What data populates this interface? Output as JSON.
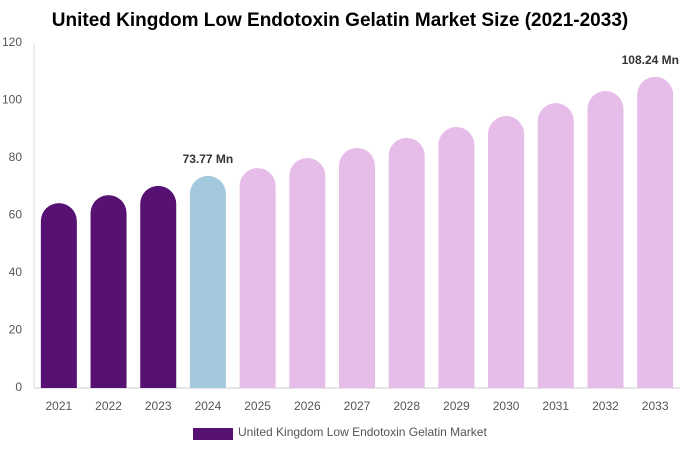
{
  "chart_data": {
    "type": "bar",
    "title": "United Kingdom Low Endotoxin Gelatin Market Size (2021-2033)",
    "categories": [
      "2021",
      "2022",
      "2023",
      "2024",
      "2025",
      "2026",
      "2027",
      "2028",
      "2029",
      "2030",
      "2031",
      "2032",
      "2033"
    ],
    "series": [
      {
        "name": "United Kingdom Low Endotoxin Gelatin Market",
        "color": "#561172",
        "values": [
          64.3,
          67.1,
          70.3,
          73.77,
          76.5,
          80,
          83.5,
          87,
          90.8,
          94.6,
          99.1,
          103.3,
          108.24
        ],
        "value_labels": [
          null,
          null,
          null,
          "73.77 Mn",
          null,
          null,
          null,
          null,
          null,
          null,
          null,
          null,
          "108.24 Mn"
        ],
        "colors": [
          "#561172",
          "#561172",
          "#561172",
          "#a4c9de",
          "#e6bce8",
          "#e6bce8",
          "#e6bce8",
          "#e6bce8",
          "#e6bce8",
          "#e6bce8",
          "#e6bce8",
          "#e6bce8",
          "#e6bce8"
        ]
      }
    ],
    "ylim": [
      0,
      120
    ],
    "yticks": [
      0,
      20,
      40,
      60,
      80,
      100,
      120
    ],
    "grid": false
  }
}
